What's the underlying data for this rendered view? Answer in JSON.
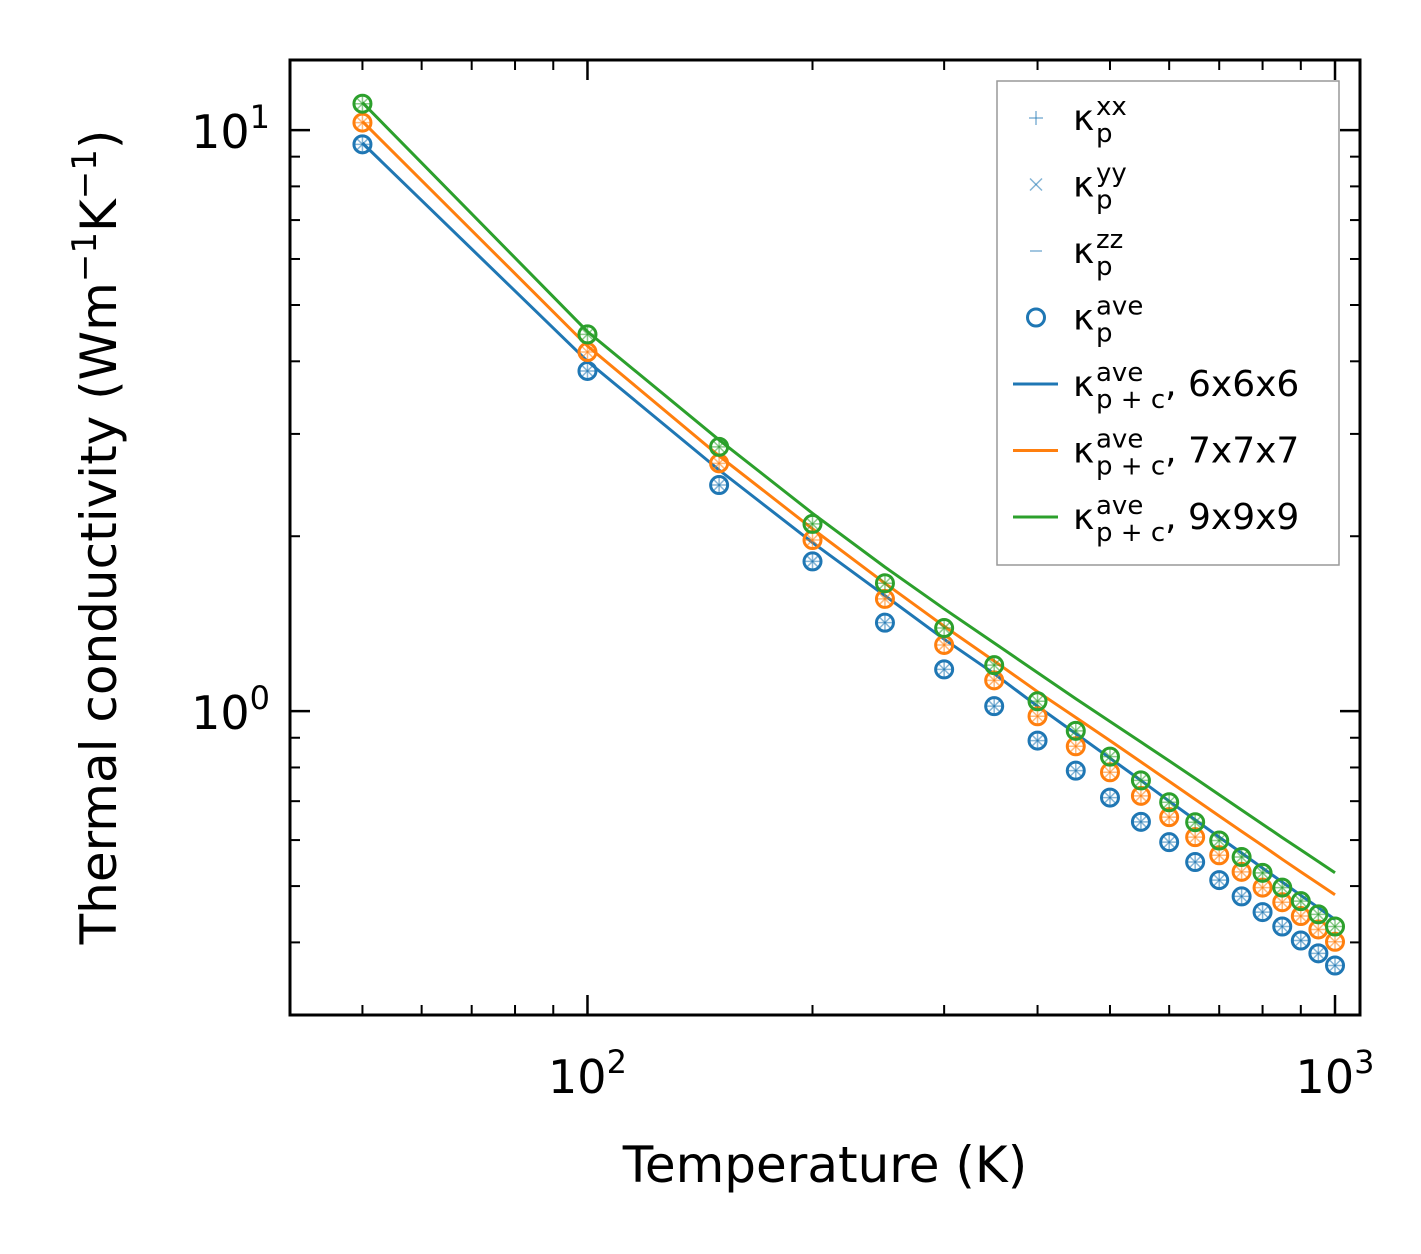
{
  "chart_data": {
    "type": "line",
    "scale": {
      "x": "log",
      "y": "log"
    },
    "xlabel": "Temperature (K)",
    "ylabel": {
      "main": "Thermal conductivity (Wm",
      "exp1": "−1",
      "mid": "K",
      "exp2": "−1",
      "end": ")"
    },
    "xlim": [
      40,
      1080
    ],
    "ylim": [
      0.3,
      13.2
    ],
    "x_ticks": [
      {
        "value": 100,
        "base": "10",
        "exp": "2"
      },
      {
        "value": 1000,
        "base": "10",
        "exp": "3"
      }
    ],
    "y_ticks": [
      {
        "value": 1,
        "base": "10",
        "exp": "0"
      },
      {
        "value": 10,
        "base": "10",
        "exp": "1"
      }
    ],
    "x": [
      50,
      100,
      150,
      200,
      250,
      300,
      350,
      400,
      450,
      500,
      550,
      600,
      650,
      700,
      750,
      800,
      850,
      900,
      950,
      1000
    ],
    "legend": [
      {
        "label": "κ",
        "sup": "xx",
        "sub": "p",
        "suffix": "",
        "marker": "plus",
        "color": "#1f77b4"
      },
      {
        "label": "κ",
        "sup": "yy",
        "sub": "p",
        "suffix": "",
        "marker": "x",
        "color": "#1f77b4"
      },
      {
        "label": "κ",
        "sup": "zz",
        "sub": "p",
        "suffix": "",
        "marker": "minus",
        "color": "#1f77b4"
      },
      {
        "label": "κ",
        "sup": "ave",
        "sub": "p",
        "suffix": "",
        "marker": "circle",
        "color": "#1f77b4"
      },
      {
        "label": "κ",
        "sup": "ave",
        "sub": "p + c",
        "suffix": ", 6x6x6",
        "marker": "line",
        "color": "#1f77b4"
      },
      {
        "label": "κ",
        "sup": "ave",
        "sub": "p + c",
        "suffix": ", 7x7x7",
        "marker": "line",
        "color": "#ff7f0e"
      },
      {
        "label": "κ",
        "sup": "ave",
        "sub": "p + c",
        "suffix": ", 9x9x9",
        "marker": "line",
        "color": "#2ca02c"
      }
    ],
    "series": [
      {
        "name": "6x6x6",
        "color": "#1f77b4",
        "kappa_p_ave": [
          9.45,
          3.85,
          2.45,
          1.81,
          1.42,
          1.18,
          1.02,
          0.89,
          0.79,
          0.71,
          0.645,
          0.595,
          0.55,
          0.512,
          0.48,
          0.451,
          0.426,
          0.403,
          0.383,
          0.365
        ],
        "kappa_pc_ave": [
          9.5,
          4.0,
          2.6,
          1.95,
          1.58,
          1.33,
          1.16,
          1.02,
          0.915,
          0.83,
          0.76,
          0.7,
          0.65,
          0.607,
          0.57,
          0.537,
          0.508,
          0.482,
          0.459,
          0.438
        ]
      },
      {
        "name": "7x7x7",
        "color": "#ff7f0e",
        "kappa_p_ave": [
          10.3,
          4.15,
          2.67,
          1.97,
          1.56,
          1.3,
          1.13,
          0.98,
          0.87,
          0.785,
          0.715,
          0.657,
          0.607,
          0.565,
          0.529,
          0.497,
          0.469,
          0.444,
          0.421,
          0.401
        ],
        "kappa_pc_ave": [
          10.35,
          4.25,
          2.75,
          2.06,
          1.66,
          1.4,
          1.22,
          1.08,
          0.975,
          0.89,
          0.818,
          0.757,
          0.705,
          0.66,
          0.621,
          0.587,
          0.556,
          0.529,
          0.505,
          0.483
        ]
      },
      {
        "name": "9x9x9",
        "color": "#2ca02c",
        "kappa_p_ave": [
          11.1,
          4.45,
          2.85,
          2.1,
          1.66,
          1.39,
          1.2,
          1.04,
          0.925,
          0.835,
          0.76,
          0.697,
          0.644,
          0.599,
          0.561,
          0.527,
          0.497,
          0.471,
          0.447,
          0.426
        ],
        "kappa_pc_ave": [
          11.15,
          4.5,
          2.93,
          2.19,
          1.77,
          1.5,
          1.31,
          1.165,
          1.05,
          0.96,
          0.885,
          0.821,
          0.766,
          0.718,
          0.676,
          0.639,
          0.606,
          0.577,
          0.551,
          0.527
        ]
      }
    ]
  }
}
